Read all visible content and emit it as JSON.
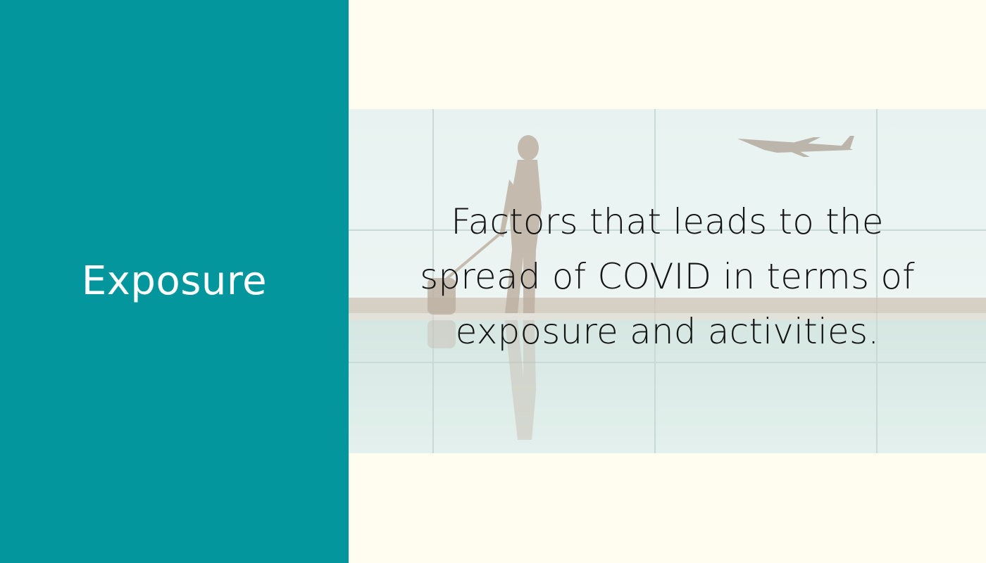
{
  "slide": {
    "title": "Exposure",
    "caption_lines": [
      "Factors that leads to the",
      "spread of COVID in terms of",
      "exposure and activities."
    ]
  },
  "colors": {
    "panel": "#03979d",
    "background": "#fefdf0",
    "title_text": "#ffffff",
    "caption_text": "#141414"
  }
}
